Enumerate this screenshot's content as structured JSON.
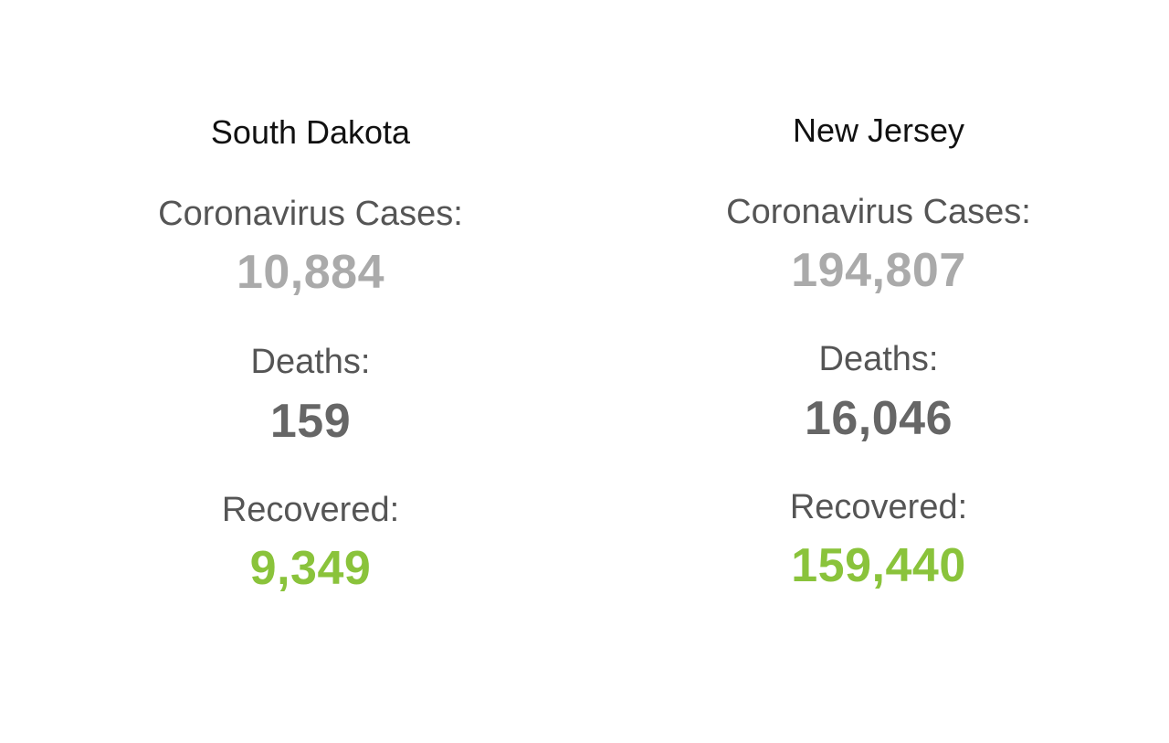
{
  "panels": [
    {
      "state": "South Dakota",
      "cases_label": "Coronavirus Cases:",
      "cases": "10,884",
      "deaths_label": "Deaths:",
      "deaths": "159",
      "recovered_label": "Recovered:",
      "recovered": "9,349"
    },
    {
      "state": "New Jersey",
      "cases_label": "Coronavirus Cases:",
      "cases": "194,807",
      "deaths_label": "Deaths:",
      "deaths": "16,046",
      "recovered_label": "Recovered:",
      "recovered": "159,440"
    }
  ],
  "colors": {
    "cases": "#aaaaaa",
    "deaths": "#666666",
    "recovered": "#8ac33b",
    "label": "#555555",
    "title": "#111111"
  }
}
